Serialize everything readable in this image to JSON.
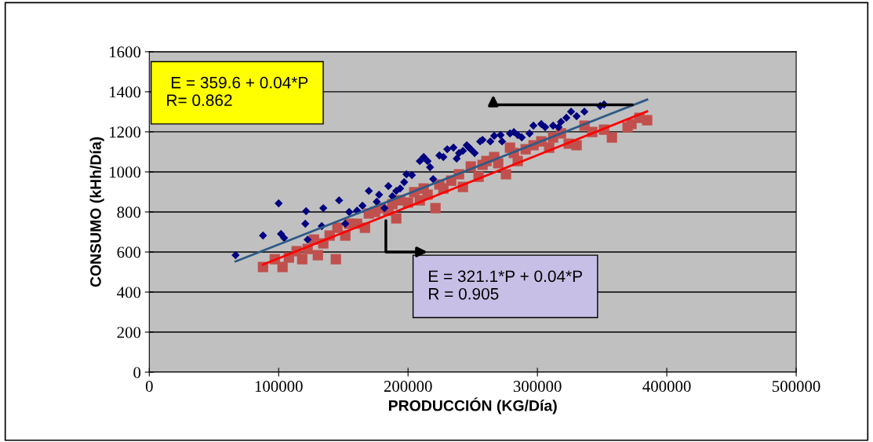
{
  "chart_data": {
    "type": "scatter",
    "xlabel": "PRODUCCIÓN (KG/Día)",
    "ylabel": "CONSUMO (kHh/Día)",
    "xlim": [
      0,
      500000
    ],
    "xticks": [
      0,
      100000,
      200000,
      300000,
      400000,
      500000
    ],
    "ylim": [
      0,
      1600
    ],
    "yticks": [
      0,
      200,
      400,
      600,
      800,
      1000,
      1200,
      1400,
      1600
    ],
    "grid": "y",
    "legend": false,
    "series": [
      {
        "marker": "square",
        "color": "#c0504d",
        "x": [
          87900,
          97000,
          103000,
          107900,
          113900,
          118200,
          122400,
          127300,
          130300,
          134500,
          139400,
          144200,
          145400,
          151500,
          154500,
          160600,
          166700,
          169700,
          174500,
          178800,
          184800,
          187900,
          190900,
          193900,
          200000,
          204800,
          209100,
          212100,
          215100,
          221200,
          224200,
          227300,
          233300,
          239400,
          242400,
          248500,
          254500,
          257600,
          260600,
          266600,
          269700,
          275700,
          278800,
          281800,
          284800,
          290900,
          297000,
          303000,
          309100,
          312100,
          318200,
          324200,
          330300,
          336400,
          342400,
          351500,
          357600,
          369700,
          372700,
          378800,
          384800
        ],
        "values": [
          525,
          564,
          525,
          572,
          604,
          564,
          615,
          662,
          584,
          643,
          682,
          564,
          721,
          682,
          741,
          741,
          721,
          792,
          800,
          819,
          807,
          839,
          768,
          858,
          847,
          898,
          858,
          917,
          886,
          819,
          937,
          917,
          956,
          988,
          925,
          1027,
          976,
          1035,
          1054,
          1074,
          1043,
          988,
          1121,
          1094,
          1054,
          1113,
          1133,
          1152,
          1121,
          1172,
          1192,
          1141,
          1133,
          1231,
          1199,
          1211,
          1172,
          1223,
          1239,
          1270,
          1258
        ]
      },
      {
        "marker": "diamond",
        "color": "#000080",
        "x": [
          66700,
          87900,
          100000,
          101800,
          104200,
          121200,
          120600,
          122400,
          133300,
          134500,
          146700,
          151500,
          154500,
          160600,
          164800,
          169700,
          175800,
          177600,
          181800,
          184800,
          187900,
          190900,
          193900,
          197000,
          198800,
          203000,
          209100,
          212100,
          215100,
          217000,
          219400,
          224200,
          227300,
          230300,
          235100,
          237600,
          239400,
          242400,
          245400,
          247200,
          248500,
          251500,
          255700,
          257600,
          263600,
          266600,
          271500,
          272700,
          278800,
          281800,
          284800,
          287900,
          293900,
          296900,
          303000,
          306000,
          312100,
          316300,
          318200,
          322400,
          326000,
          330300,
          336300,
          348500,
          351500
        ],
        "values": [
          584,
          682,
          843,
          690,
          670,
          804,
          741,
          662,
          729,
          819,
          858,
          741,
          800,
          807,
          831,
          905,
          851,
          886,
          819,
          929,
          878,
          905,
          917,
          949,
          988,
          984,
          1054,
          1074,
          1054,
          1023,
          964,
          1082,
          1074,
          1113,
          1121,
          1066,
          1094,
          1105,
          1133,
          1121,
          1113,
          1094,
          1152,
          1160,
          1152,
          1180,
          1184,
          1152,
          1192,
          1199,
          1184,
          1172,
          1192,
          1231,
          1239,
          1223,
          1231,
          1223,
          1250,
          1270,
          1301,
          1278,
          1301,
          1329,
          1337
        ]
      },
      {
        "type": "line",
        "color": "#2e5a87",
        "x": [
          66700,
          384800
        ],
        "values": [
          553,
          1361
        ]
      },
      {
        "type": "line",
        "color": "#ff0000",
        "x": [
          87900,
          384800
        ],
        "values": [
          537,
          1302
        ]
      }
    ],
    "annotations": [
      " E = 359.6 + 0.04*P\nR= 0.862",
      "E = 321.1*P + 0.04*P\nR = 0.905"
    ]
  }
}
